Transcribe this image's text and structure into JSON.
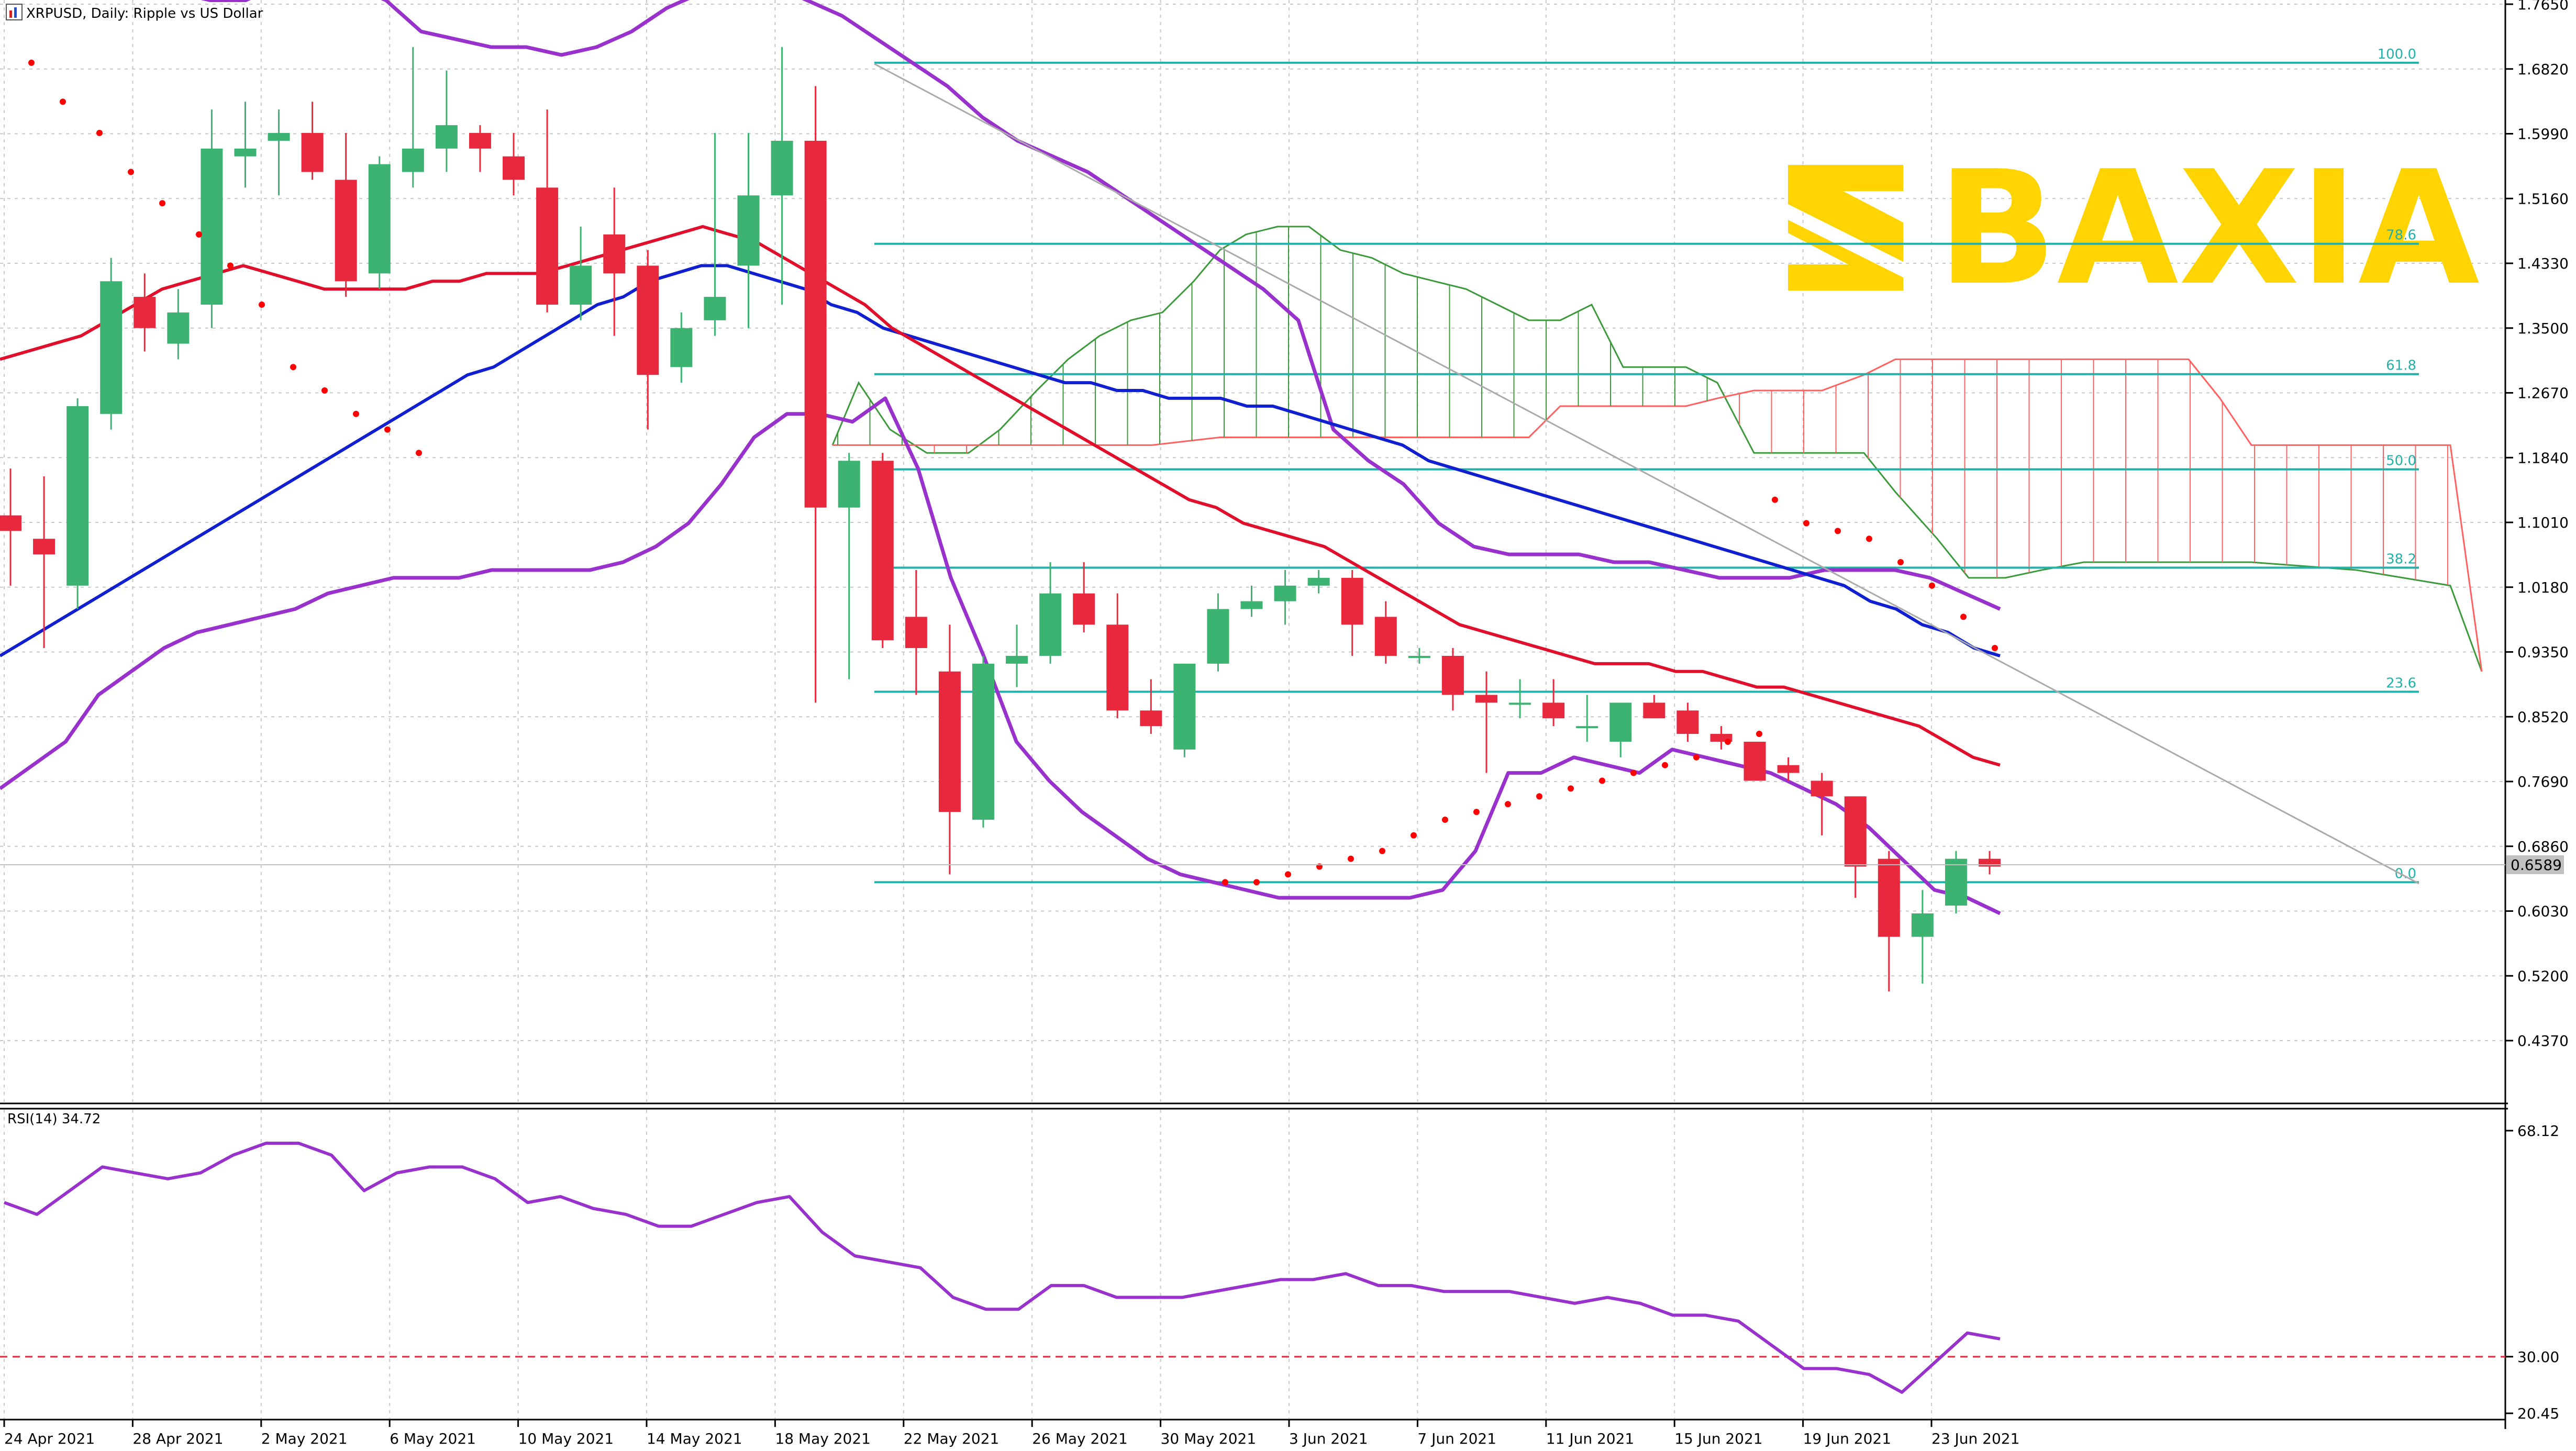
{
  "window": {
    "title": "XRPUSD, Daily:  Ripple vs US Dollar",
    "icon": "chart-window-icon"
  },
  "logo": {
    "text": "BAXIA",
    "color": "#ffd400",
    "icon": "baxia-logo-mark"
  },
  "colors": {
    "bull": "#3cb371",
    "bear": "#e8283c",
    "ma_fast": "#e0102c",
    "ma_slow": "#1020d0",
    "bollinger": "#9932cc",
    "fib": "#20b2aa",
    "sar": "#ff0000",
    "cloud_bull": "#3c9a3c",
    "cloud_bear": "#ff6060",
    "rsi": "#9932cc",
    "grid": "#c8c8c8"
  },
  "price_axis": {
    "ticks": [
      "1.7650",
      "1.6820",
      "1.5990",
      "1.5160",
      "1.4330",
      "1.3500",
      "1.2670",
      "1.1840",
      "1.1010",
      "1.0180",
      "0.9350",
      "0.8520",
      "0.7690",
      "0.6860",
      "0.6030",
      "0.5200",
      "0.4370"
    ],
    "current_price": "0.6589"
  },
  "date_axis": {
    "ticks": [
      "24 Apr 2021",
      "28 Apr 2021",
      "2 May 2021",
      "6 May 2021",
      "10 May 2021",
      "14 May 2021",
      "18 May 2021",
      "22 May 2021",
      "26 May 2021",
      "30 May 2021",
      "3 Jun 2021",
      "7 Jun 2021",
      "11 Jun 2021",
      "15 Jun 2021",
      "19 Jun 2021",
      "23 Jun 2021"
    ]
  },
  "fib_levels": [
    {
      "label": "100.0",
      "price": 1.69
    },
    {
      "label": "78.6",
      "price": 1.458
    },
    {
      "label": "61.8",
      "price": 1.291
    },
    {
      "label": "50.0",
      "price": 1.169
    },
    {
      "label": "38.2",
      "price": 1.043
    },
    {
      "label": "23.6",
      "price": 0.884
    },
    {
      "label": "0.0",
      "price": 0.64
    }
  ],
  "rsi": {
    "label": "RSI(14) 34.72",
    "ticks": [
      "68.12",
      "30.00",
      "20.45"
    ],
    "level": 30
  },
  "chart_data": {
    "type": "candlestick",
    "title": "XRPUSD, Daily:  Ripple vs US Dollar",
    "ylim": [
      0.38,
      1.77
    ],
    "candles": [
      {
        "o": 1.11,
        "h": 1.17,
        "l": 1.02,
        "c": 1.09
      },
      {
        "o": 1.08,
        "h": 1.16,
        "l": 0.94,
        "c": 1.06
      },
      {
        "o": 1.02,
        "h": 1.26,
        "l": 0.99,
        "c": 1.25
      },
      {
        "o": 1.24,
        "h": 1.44,
        "l": 1.22,
        "c": 1.41
      },
      {
        "o": 1.39,
        "h": 1.42,
        "l": 1.32,
        "c": 1.35
      },
      {
        "o": 1.33,
        "h": 1.4,
        "l": 1.31,
        "c": 1.37
      },
      {
        "o": 1.38,
        "h": 1.63,
        "l": 1.35,
        "c": 1.58
      },
      {
        "o": 1.57,
        "h": 1.64,
        "l": 1.53,
        "c": 1.58
      },
      {
        "o": 1.59,
        "h": 1.63,
        "l": 1.52,
        "c": 1.6
      },
      {
        "o": 1.6,
        "h": 1.64,
        "l": 1.54,
        "c": 1.55
      },
      {
        "o": 1.54,
        "h": 1.6,
        "l": 1.39,
        "c": 1.41
      },
      {
        "o": 1.42,
        "h": 1.57,
        "l": 1.4,
        "c": 1.56
      },
      {
        "o": 1.55,
        "h": 1.71,
        "l": 1.53,
        "c": 1.58
      },
      {
        "o": 1.58,
        "h": 1.68,
        "l": 1.55,
        "c": 1.61
      },
      {
        "o": 1.6,
        "h": 1.61,
        "l": 1.55,
        "c": 1.58
      },
      {
        "o": 1.57,
        "h": 1.6,
        "l": 1.52,
        "c": 1.54
      },
      {
        "o": 1.53,
        "h": 1.63,
        "l": 1.37,
        "c": 1.38
      },
      {
        "o": 1.38,
        "h": 1.48,
        "l": 1.36,
        "c": 1.43
      },
      {
        "o": 1.47,
        "h": 1.53,
        "l": 1.34,
        "c": 1.42
      },
      {
        "o": 1.43,
        "h": 1.45,
        "l": 1.22,
        "c": 1.29
      },
      {
        "o": 1.3,
        "h": 1.37,
        "l": 1.28,
        "c": 1.35
      },
      {
        "o": 1.36,
        "h": 1.6,
        "l": 1.34,
        "c": 1.39
      },
      {
        "o": 1.43,
        "h": 1.6,
        "l": 1.35,
        "c": 1.52
      },
      {
        "o": 1.52,
        "h": 1.71,
        "l": 1.38,
        "c": 1.59
      },
      {
        "o": 1.59,
        "h": 1.66,
        "l": 0.87,
        "c": 1.12
      },
      {
        "o": 1.12,
        "h": 1.19,
        "l": 0.9,
        "c": 1.18
      },
      {
        "o": 1.18,
        "h": 1.19,
        "l": 0.94,
        "c": 0.95
      },
      {
        "o": 0.98,
        "h": 1.04,
        "l": 0.88,
        "c": 0.94
      },
      {
        "o": 0.91,
        "h": 0.97,
        "l": 0.65,
        "c": 0.73
      },
      {
        "o": 0.72,
        "h": 0.93,
        "l": 0.71,
        "c": 0.92
      },
      {
        "o": 0.92,
        "h": 0.97,
        "l": 0.89,
        "c": 0.93
      },
      {
        "o": 0.93,
        "h": 1.05,
        "l": 0.92,
        "c": 1.01
      },
      {
        "o": 1.01,
        "h": 1.05,
        "l": 0.96,
        "c": 0.97
      },
      {
        "o": 0.97,
        "h": 1.01,
        "l": 0.85,
        "c": 0.86
      },
      {
        "o": 0.86,
        "h": 0.9,
        "l": 0.83,
        "c": 0.84
      },
      {
        "o": 0.81,
        "h": 0.92,
        "l": 0.8,
        "c": 0.92
      },
      {
        "o": 0.92,
        "h": 1.01,
        "l": 0.91,
        "c": 0.99
      },
      {
        "o": 0.99,
        "h": 1.02,
        "l": 0.98,
        "c": 1.0
      },
      {
        "o": 1.0,
        "h": 1.04,
        "l": 0.97,
        "c": 1.02
      },
      {
        "o": 1.02,
        "h": 1.04,
        "l": 1.01,
        "c": 1.03
      },
      {
        "o": 1.03,
        "h": 1.04,
        "l": 0.93,
        "c": 0.97
      },
      {
        "o": 0.98,
        "h": 1.0,
        "l": 0.92,
        "c": 0.93
      },
      {
        "o": 0.93,
        "h": 0.94,
        "l": 0.92,
        "c": 0.93
      },
      {
        "o": 0.93,
        "h": 0.94,
        "l": 0.86,
        "c": 0.88
      },
      {
        "o": 0.88,
        "h": 0.91,
        "l": 0.78,
        "c": 0.87
      },
      {
        "o": 0.87,
        "h": 0.9,
        "l": 0.85,
        "c": 0.87
      },
      {
        "o": 0.87,
        "h": 0.9,
        "l": 0.84,
        "c": 0.85
      },
      {
        "o": 0.84,
        "h": 0.88,
        "l": 0.82,
        "c": 0.84
      },
      {
        "o": 0.82,
        "h": 0.86,
        "l": 0.8,
        "c": 0.87
      },
      {
        "o": 0.87,
        "h": 0.88,
        "l": 0.85,
        "c": 0.85
      },
      {
        "o": 0.86,
        "h": 0.87,
        "l": 0.82,
        "c": 0.83
      },
      {
        "o": 0.83,
        "h": 0.84,
        "l": 0.81,
        "c": 0.82
      },
      {
        "o": 0.82,
        "h": 0.82,
        "l": 0.77,
        "c": 0.77
      },
      {
        "o": 0.79,
        "h": 0.8,
        "l": 0.77,
        "c": 0.78
      },
      {
        "o": 0.77,
        "h": 0.78,
        "l": 0.7,
        "c": 0.75
      },
      {
        "o": 0.75,
        "h": 0.75,
        "l": 0.62,
        "c": 0.66
      },
      {
        "o": 0.67,
        "h": 0.68,
        "l": 0.5,
        "c": 0.57
      },
      {
        "o": 0.57,
        "h": 0.63,
        "l": 0.51,
        "c": 0.6
      },
      {
        "o": 0.61,
        "h": 0.68,
        "l": 0.6,
        "c": 0.67
      },
      {
        "o": 0.67,
        "h": 0.68,
        "l": 0.65,
        "c": 0.66
      }
    ],
    "ma_fast": [
      1.31,
      1.32,
      1.33,
      1.34,
      1.36,
      1.38,
      1.4,
      1.41,
      1.42,
      1.43,
      1.42,
      1.41,
      1.4,
      1.4,
      1.4,
      1.4,
      1.41,
      1.41,
      1.42,
      1.42,
      1.42,
      1.43,
      1.44,
      1.45,
      1.46,
      1.47,
      1.48,
      1.47,
      1.46,
      1.44,
      1.42,
      1.4,
      1.38,
      1.35,
      1.33,
      1.31,
      1.29,
      1.27,
      1.25,
      1.23,
      1.21,
      1.19,
      1.17,
      1.15,
      1.13,
      1.12,
      1.1,
      1.09,
      1.08,
      1.07,
      1.05,
      1.03,
      1.01,
      0.99,
      0.97,
      0.96,
      0.95,
      0.94,
      0.93,
      0.92,
      0.92,
      0.92,
      0.91,
      0.91,
      0.9,
      0.89,
      0.89,
      0.88,
      0.87,
      0.86,
      0.85,
      0.84,
      0.82,
      0.8,
      0.79
    ],
    "ma_slow": [
      0.93,
      0.95,
      0.97,
      0.99,
      1.01,
      1.03,
      1.05,
      1.07,
      1.09,
      1.11,
      1.13,
      1.15,
      1.17,
      1.19,
      1.21,
      1.23,
      1.25,
      1.27,
      1.29,
      1.3,
      1.32,
      1.34,
      1.36,
      1.38,
      1.39,
      1.41,
      1.42,
      1.43,
      1.43,
      1.42,
      1.41,
      1.4,
      1.38,
      1.37,
      1.35,
      1.34,
      1.33,
      1.32,
      1.31,
      1.3,
      1.29,
      1.28,
      1.28,
      1.27,
      1.27,
      1.26,
      1.26,
      1.26,
      1.25,
      1.25,
      1.24,
      1.23,
      1.22,
      1.21,
      1.2,
      1.18,
      1.17,
      1.16,
      1.15,
      1.14,
      1.13,
      1.12,
      1.11,
      1.1,
      1.09,
      1.08,
      1.07,
      1.06,
      1.05,
      1.04,
      1.03,
      1.02,
      1.0,
      0.99,
      0.97,
      0.96,
      0.94,
      0.93
    ],
    "bb_upper": [
      1.83,
      1.82,
      1.8,
      1.81,
      1.79,
      1.78,
      1.77,
      1.77,
      1.79,
      1.8,
      1.79,
      1.77,
      1.73,
      1.72,
      1.71,
      1.71,
      1.7,
      1.71,
      1.73,
      1.76,
      1.78,
      1.8,
      1.79,
      1.77,
      1.75,
      1.72,
      1.69,
      1.66,
      1.62,
      1.59,
      1.57,
      1.55,
      1.52,
      1.49,
      1.46,
      1.43,
      1.4,
      1.36,
      1.22,
      1.18,
      1.15,
      1.1,
      1.07,
      1.06,
      1.06,
      1.06,
      1.05,
      1.05,
      1.04,
      1.03,
      1.03,
      1.03,
      1.04,
      1.04,
      1.04,
      1.03,
      1.01,
      0.99
    ],
    "bb_lower": [
      0.76,
      0.79,
      0.82,
      0.88,
      0.91,
      0.94,
      0.96,
      0.97,
      0.98,
      0.99,
      1.01,
      1.02,
      1.03,
      1.03,
      1.03,
      1.04,
      1.04,
      1.04,
      1.04,
      1.05,
      1.07,
      1.1,
      1.15,
      1.21,
      1.24,
      1.24,
      1.23,
      1.26,
      1.17,
      1.03,
      0.93,
      0.82,
      0.77,
      0.73,
      0.7,
      0.67,
      0.65,
      0.64,
      0.63,
      0.62,
      0.62,
      0.62,
      0.62,
      0.62,
      0.63,
      0.68,
      0.78,
      0.78,
      0.8,
      0.79,
      0.78,
      0.81,
      0.8,
      0.79,
      0.78,
      0.76,
      0.74,
      0.71,
      0.67,
      0.63,
      0.62,
      0.6
    ],
    "fib_levels": [
      1.69,
      1.458,
      1.291,
      1.169,
      1.043,
      0.884,
      0.64
    ],
    "rsi_values": [
      56,
      54,
      58,
      62,
      61,
      60,
      61,
      64,
      66,
      66,
      64,
      58,
      61,
      62,
      62,
      60,
      56,
      57,
      55,
      54,
      52,
      52,
      54,
      56,
      57,
      51,
      47,
      46,
      45,
      40,
      38,
      38,
      42,
      42,
      40,
      40,
      40,
      41,
      42,
      43,
      43,
      44,
      42,
      42,
      41,
      41,
      41,
      40,
      39,
      40,
      39,
      37,
      37,
      36,
      32,
      28,
      28,
      27,
      24,
      29,
      34,
      33
    ],
    "rsi_ylim": [
      20.45,
      68.12
    ],
    "sar": [
      1.69,
      1.64,
      1.6,
      1.55,
      1.51,
      1.47,
      1.43,
      1.38,
      1.3,
      1.27,
      1.24,
      1.22,
      1.19,
      0.64,
      0.64,
      0.65,
      0.66,
      0.67,
      0.68,
      0.7,
      0.72,
      0.73,
      0.74,
      0.75,
      0.76,
      0.77,
      0.78,
      0.79,
      0.8,
      0.82,
      0.83,
      1.13,
      1.1,
      1.09,
      1.08,
      1.05,
      1.02,
      0.98,
      0.94
    ]
  }
}
